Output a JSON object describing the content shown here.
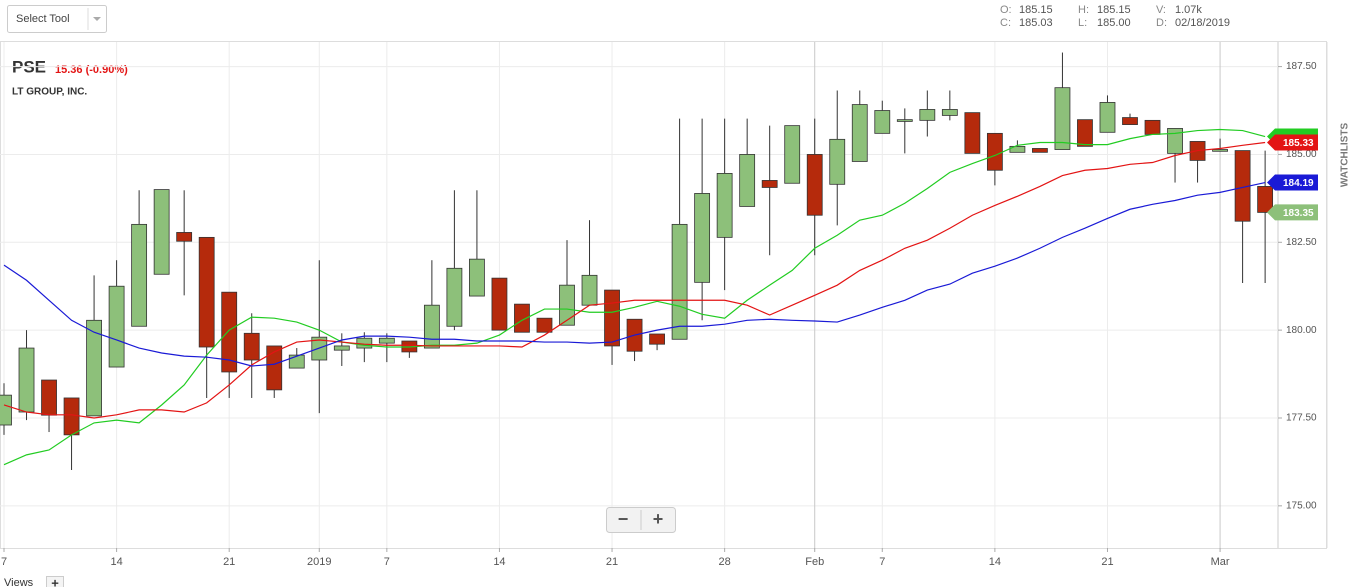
{
  "toolbar": {
    "select_tool": "Select Tool"
  },
  "info": [
    {
      "label": "O:",
      "value": "185.15"
    },
    {
      "label": "C:",
      "value": "185.03"
    },
    {
      "label": "H:",
      "value": "185.15"
    },
    {
      "label": "L:",
      "value": "185.00"
    },
    {
      "label": "V:",
      "value": "1.07k"
    },
    {
      "label": "D:",
      "value": "02/18/2019"
    }
  ],
  "sidebar": "WATCHLISTS",
  "footer": {
    "views": "Views",
    "add": "+",
    "zoom_out": "−",
    "zoom_in": "+"
  },
  "chart_data": {
    "type": "candlestick",
    "title": "PSE",
    "change": "15.36 (-0.90%)",
    "subtitle": "LT GROUP, INC.",
    "up_color": "#8dc07a",
    "down_color": "#b52a0c",
    "categories": [
      "7",
      null,
      null,
      null,
      null,
      "14",
      null,
      null,
      null,
      null,
      "21",
      null,
      null,
      null,
      "2019",
      null,
      null,
      "7",
      null,
      null,
      null,
      null,
      "14",
      null,
      null,
      null,
      null,
      "21",
      null,
      null,
      null,
      null,
      "28",
      null,
      null,
      null,
      "Feb",
      null,
      null,
      "7",
      null,
      null,
      null,
      null,
      "14",
      null,
      null,
      null,
      null,
      "21",
      null,
      null,
      null,
      null,
      "Mar",
      null,
      null
    ],
    "open": [
      177.3,
      177.67,
      178.58,
      178.07,
      177.56,
      178.95,
      180.11,
      181.59,
      182.78,
      182.64,
      181.08,
      179.91,
      179.55,
      178.92,
      179.15,
      179.43,
      179.49,
      179.63,
      179.69,
      179.49,
      180.11,
      180.97,
      181.48,
      180.74,
      180.34,
      180.14,
      180.71,
      181.14,
      180.31,
      179.89,
      179.74,
      181.36,
      182.64,
      183.52,
      184.26,
      184.18,
      185.0,
      184.15,
      184.8,
      185.6,
      185.94,
      185.97,
      186.11,
      186.19,
      185.6,
      185.06,
      185.17,
      185.14,
      185.99,
      185.63,
      186.05,
      185.97,
      185.03,
      185.37,
      185.09,
      185.11,
      184.09
    ],
    "close": [
      178.15,
      179.49,
      177.58,
      177.02,
      180.28,
      181.25,
      183.01,
      184.0,
      182.53,
      179.52,
      178.81,
      179.15,
      178.3,
      179.29,
      179.8,
      179.55,
      179.77,
      179.77,
      179.38,
      180.71,
      181.76,
      182.02,
      180.0,
      179.94,
      179.94,
      181.28,
      181.56,
      179.55,
      179.4,
      179.6,
      183.01,
      183.89,
      184.46,
      185.0,
      184.06,
      185.82,
      183.27,
      185.43,
      186.42,
      186.25,
      185.99,
      186.28,
      186.28,
      185.03,
      184.55,
      185.23,
      185.06,
      186.9,
      185.23,
      186.48,
      185.85,
      185.57,
      185.74,
      184.83,
      185.14,
      183.1,
      183.35
    ],
    "high": [
      178.49,
      180.0,
      178.58,
      178.07,
      181.56,
      181.99,
      183.98,
      184.0,
      183.98,
      182.64,
      181.08,
      180.48,
      179.55,
      179.49,
      181.99,
      179.91,
      179.94,
      179.91,
      179.69,
      181.99,
      183.98,
      183.98,
      181.48,
      180.74,
      180.34,
      182.56,
      183.13,
      181.14,
      180.31,
      179.89,
      186.02,
      186.02,
      186.02,
      186.02,
      185.82,
      185.82,
      186.02,
      186.82,
      186.82,
      186.53,
      186.31,
      186.82,
      186.82,
      186.19,
      185.6,
      185.4,
      185.17,
      187.9,
      185.99,
      186.68,
      186.16,
      185.97,
      185.74,
      185.37,
      185.45,
      185.11,
      185.11
    ],
    "low": [
      177.02,
      177.44,
      177.1,
      176.02,
      177.56,
      178.95,
      180.11,
      181.59,
      180.99,
      178.07,
      178.07,
      178.07,
      178.07,
      178.92,
      177.64,
      178.98,
      179.09,
      179.09,
      179.21,
      179.49,
      180.0,
      180.97,
      180.0,
      179.94,
      179.94,
      180.14,
      180.71,
      179.01,
      179.12,
      179.43,
      179.74,
      180.28,
      181.14,
      183.52,
      182.13,
      184.18,
      182.13,
      182.98,
      184.8,
      185.6,
      185.03,
      185.51,
      185.97,
      185.03,
      184.12,
      185.06,
      185.06,
      185.14,
      185.23,
      185.63,
      185.85,
      185.57,
      184.2,
      184.2,
      185.09,
      181.34,
      181.34
    ],
    "series": [
      {
        "color": "#22cc22",
        "values": [
          176.17,
          176.45,
          176.59,
          177.02,
          177.36,
          177.44,
          177.36,
          177.87,
          178.44,
          179.29,
          180.0,
          180.37,
          180.34,
          180.23,
          180.0,
          179.66,
          179.57,
          179.52,
          179.52,
          179.57,
          179.57,
          179.63,
          179.86,
          180.28,
          180.6,
          180.6,
          180.51,
          180.51,
          180.65,
          180.82,
          180.68,
          180.45,
          180.34,
          180.85,
          181.28,
          181.7,
          182.33,
          182.7,
          183.13,
          183.27,
          183.61,
          184.03,
          184.49,
          184.74,
          184.97,
          185.26,
          185.34,
          185.34,
          185.28,
          185.28,
          185.45,
          185.57,
          185.6,
          185.68,
          185.71,
          185.68,
          185.51
        ]
      },
      {
        "color": "#e31414",
        "tag": "185.33",
        "values": [
          177.87,
          177.67,
          177.59,
          177.59,
          177.5,
          177.59,
          177.73,
          177.73,
          177.67,
          177.93,
          178.44,
          179.01,
          179.38,
          179.66,
          179.72,
          179.66,
          179.6,
          179.57,
          179.57,
          179.55,
          179.55,
          179.55,
          179.55,
          179.52,
          179.86,
          180.28,
          180.71,
          180.77,
          180.85,
          180.85,
          180.85,
          180.85,
          180.85,
          180.71,
          180.43,
          180.71,
          180.99,
          181.28,
          181.7,
          181.99,
          182.33,
          182.56,
          182.9,
          183.27,
          183.55,
          183.81,
          184.09,
          184.4,
          184.55,
          184.6,
          184.72,
          184.77,
          184.97,
          185.11,
          185.17,
          185.26,
          185.34
        ]
      },
      {
        "color": "#1a1ad6",
        "tag": "184.19",
        "values": [
          181.85,
          181.42,
          180.85,
          180.28,
          179.94,
          179.72,
          179.49,
          179.35,
          179.26,
          179.23,
          179.15,
          178.98,
          179.03,
          179.26,
          179.49,
          179.72,
          179.83,
          179.83,
          179.8,
          179.74,
          179.74,
          179.69,
          179.69,
          179.69,
          179.66,
          179.66,
          179.63,
          179.66,
          179.86,
          180.0,
          180.11,
          180.11,
          180.17,
          180.28,
          180.31,
          180.28,
          180.26,
          180.23,
          180.43,
          180.65,
          180.85,
          181.14,
          181.31,
          181.62,
          181.82,
          182.05,
          182.33,
          182.64,
          182.9,
          183.18,
          183.44,
          183.58,
          183.69,
          183.84,
          183.92,
          184.06,
          184.2
        ]
      }
    ],
    "last_tag": "183.35",
    "ylim": [
      173.8,
      188.2
    ],
    "yticks": [
      {
        "value": 175,
        "label": "175.00"
      },
      {
        "value": 177.5,
        "label": "177.50"
      },
      {
        "value": 180,
        "label": "180.00"
      },
      {
        "value": 182.5,
        "label": "182.50"
      },
      {
        "value": 185,
        "label": "185.00"
      },
      {
        "value": 187.5,
        "label": "187.50"
      }
    ],
    "grid": true
  }
}
